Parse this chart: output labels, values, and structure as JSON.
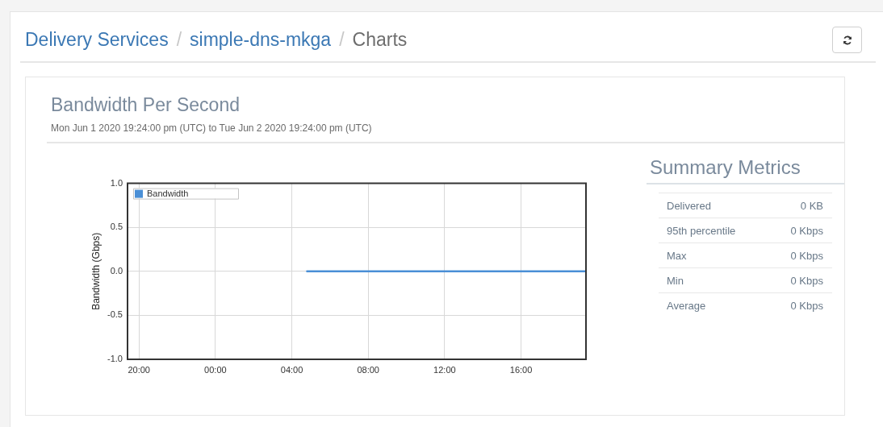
{
  "chart_data": [
    {
      "type": "line",
      "title": "Bandwidth Per Second",
      "subtitle": "Mon Jun 1 2020 19:24:00 pm (UTC) to Tue Jun 2 2020 19:24:00 pm (UTC)",
      "ylabel": "Bandwidth (Gbps)",
      "annotations": [
        "Delivery Services",
        "/",
        "simple-dns-mkga",
        "/",
        "Charts"
      ],
      "series": [
        {
          "name": "Bandwidth",
          "color": "#4a8fd6",
          "x": [
            "2020-06-02T04:48",
            "2020-06-02T19:24"
          ],
          "values": [
            0,
            0
          ]
        }
      ],
      "xlim": [
        "2020-06-01T19:24",
        "2020-06-02T19:24"
      ],
      "xticks": [
        {
          "value": "2020-06-01T20:00",
          "label": "20:00"
        },
        {
          "value": "2020-06-02T00:00",
          "label": "00:00"
        },
        {
          "value": "2020-06-02T04:00",
          "label": "04:00"
        },
        {
          "value": "2020-06-02T08:00",
          "label": "08:00"
        },
        {
          "value": "2020-06-02T12:00",
          "label": "12:00"
        },
        {
          "value": "2020-06-02T16:00",
          "label": "16:00"
        }
      ],
      "ylim": [
        -1,
        1
      ],
      "yticks": [
        {
          "value": -1,
          "label": "-1.0"
        },
        -0.5,
        {
          "value": 0,
          "label": "0.0"
        },
        0.5,
        {
          "value": 1,
          "label": "1.0"
        }
      ],
      "grid": true,
      "legend": "top left",
      "marker": "none"
    },
    {
      "type": "other",
      "title": "Summary Metrics",
      "annotations": [
        "Delivered",
        "0 KB",
        "95th percentile",
        "0 Kbps",
        "Max",
        "0 Kbps",
        "Min",
        "0 Kbps",
        "Average",
        "0 Kbps"
      ]
    }
  ]
}
